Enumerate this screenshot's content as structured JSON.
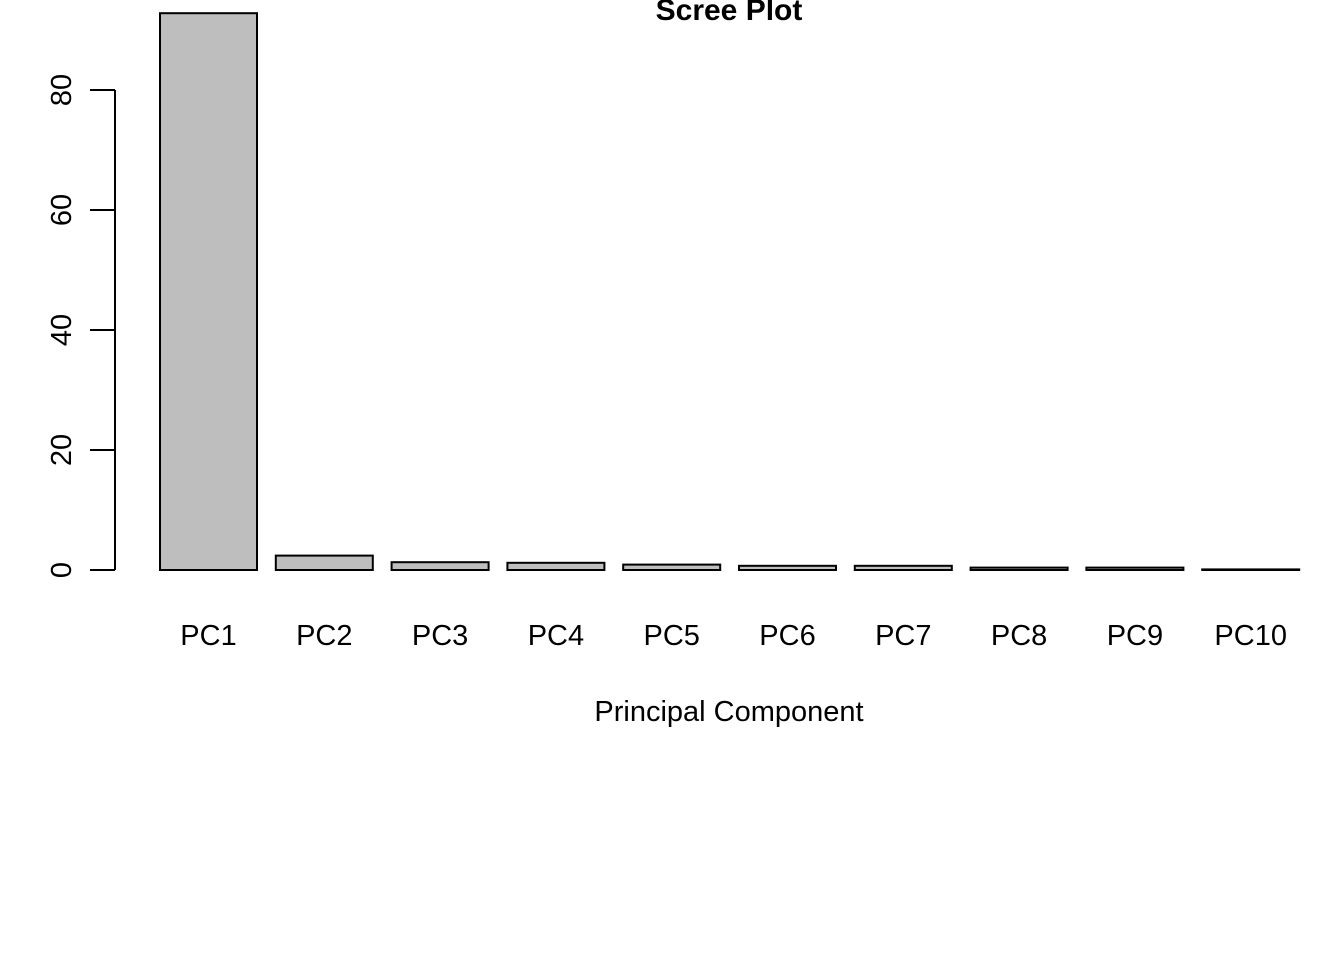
{
  "chart_data": {
    "type": "bar",
    "title": "Scree Plot",
    "xlabel": "Principal Component",
    "ylabel": "",
    "categories": [
      "PC1",
      "PC2",
      "PC3",
      "PC4",
      "PC5",
      "PC6",
      "PC7",
      "PC8",
      "PC9",
      "PC10"
    ],
    "values": [
      92.8,
      2.4,
      1.3,
      1.2,
      0.9,
      0.7,
      0.7,
      0.4,
      0.4,
      0.1
    ],
    "ylim": [
      0,
      92.8
    ],
    "yticks": [
      "0",
      "20",
      "40",
      "60",
      "80"
    ],
    "bar_fill": "#bebebe",
    "bar_stroke": "#000000",
    "grid": false,
    "legend": "none"
  }
}
